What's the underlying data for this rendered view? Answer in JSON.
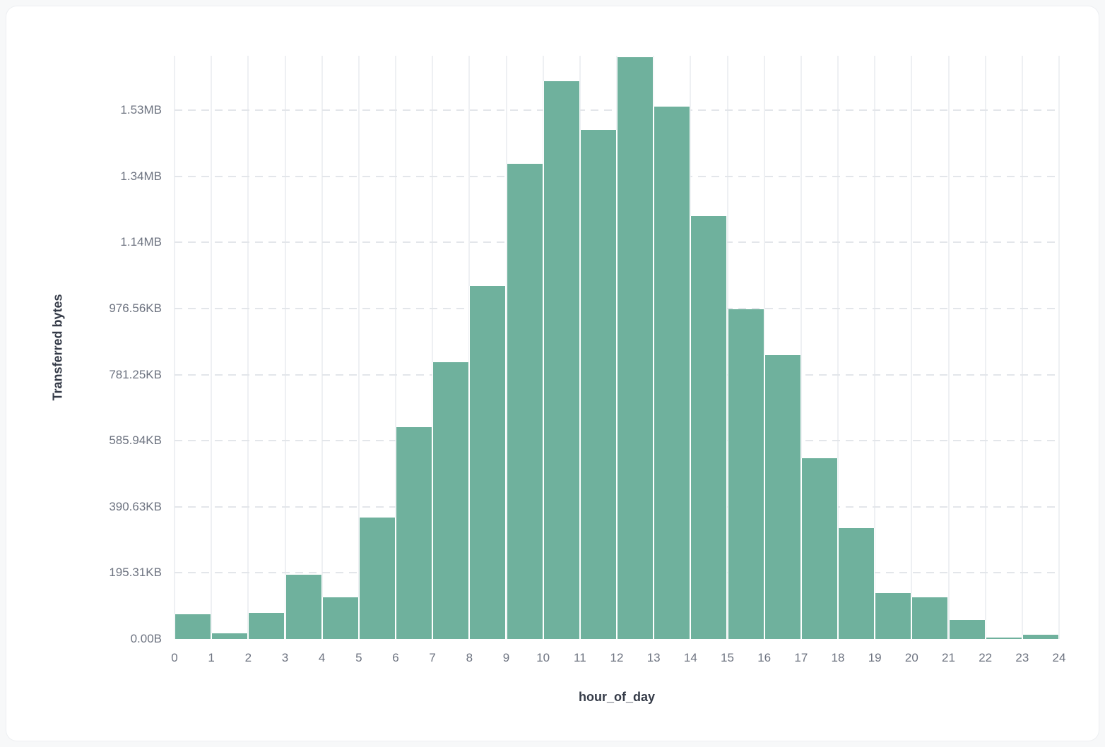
{
  "chart_data": {
    "type": "bar",
    "title": "",
    "xlabel": "hour_of_day",
    "ylabel": "Transferred bytes",
    "x_tick_labels": [
      "0",
      "1",
      "2",
      "3",
      "4",
      "5",
      "6",
      "7",
      "8",
      "9",
      "10",
      "11",
      "12",
      "13",
      "14",
      "15",
      "16",
      "17",
      "18",
      "19",
      "20",
      "21",
      "22",
      "23",
      "24"
    ],
    "bin_hours": [
      0,
      1,
      2,
      3,
      4,
      5,
      6,
      7,
      8,
      9,
      10,
      11,
      12,
      13,
      14,
      15,
      16,
      17,
      18,
      19,
      20,
      21,
      22,
      23
    ],
    "values_bytes": [
      75000,
      17000,
      79000,
      194000,
      126000,
      368000,
      641000,
      838000,
      1068000,
      1438000,
      1688000,
      1541000,
      1761000,
      1611000,
      1280000,
      998000,
      859000,
      547000,
      335000,
      139000,
      126000,
      58000,
      4000,
      13000
    ],
    "y_ticks": [
      {
        "label": "0.00B",
        "bytes": 0
      },
      {
        "label": "195.31KB",
        "bytes": 200000
      },
      {
        "label": "390.63KB",
        "bytes": 400000
      },
      {
        "label": "585.94KB",
        "bytes": 600000
      },
      {
        "label": "781.25KB",
        "bytes": 800000
      },
      {
        "label": "976.56KB",
        "bytes": 1000000
      },
      {
        "label": "1.14MB",
        "bytes": 1200000
      },
      {
        "label": "1.34MB",
        "bytes": 1400000
      },
      {
        "label": "1.53MB",
        "bytes": 1600000
      }
    ],
    "ylim_bytes": [
      0,
      1765000
    ],
    "grid": {
      "vertical": "solid",
      "horizontal": "dashed"
    },
    "legend_position": "none",
    "bar_color": "#6fb19d"
  },
  "colors": {
    "page_bg": "#f7f8f9",
    "card_bg": "#ffffff",
    "card_border": "#edeff2",
    "bar_fill": "#6fb19d",
    "bar_separator": "#ffffff",
    "vertical_grid": "#eef0f3",
    "horizontal_grid": "#e3e6ea",
    "tick_label": "#6d7380",
    "axis_title": "#353b48"
  }
}
